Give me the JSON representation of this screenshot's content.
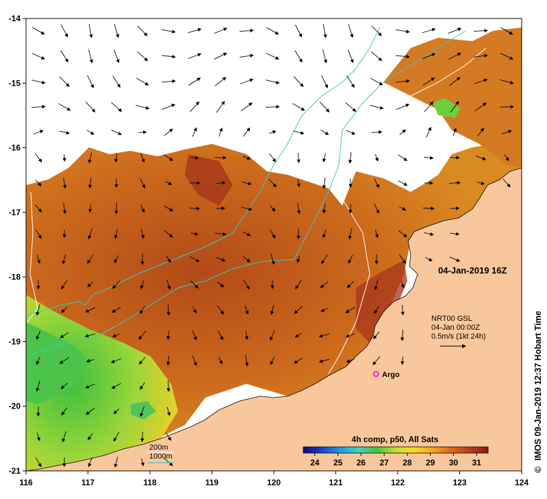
{
  "map": {
    "x_axis": {
      "ticks": [
        "116",
        "117",
        "118",
        "119",
        "120",
        "121",
        "122",
        "123",
        "124"
      ],
      "min": 116,
      "max": 124
    },
    "y_axis": {
      "ticks": [
        "-14",
        "-15",
        "-16",
        "-17",
        "-18",
        "-19",
        "-20",
        "-21"
      ],
      "min": -21,
      "max": -14
    },
    "timestamp": "04-Jan-2019 16Z",
    "currents": {
      "line1": "NRT00 GSL",
      "line2": "04-Jan 00:00Z",
      "line3": "0.5m/s (1kt 24h)"
    },
    "argo": {
      "label": "Argo",
      "lon": 121.65,
      "lat": -19.5,
      "color": "#ff00ff"
    },
    "isobaths": {
      "label_200": "200m",
      "label_1000": "1000m",
      "color_200": "#ffffff",
      "color_1000": "#33cccc"
    },
    "colorbar": {
      "title": "4h comp, p50, All Sats",
      "ticks": [
        "24",
        "25",
        "26",
        "27",
        "28",
        "29",
        "30",
        "31"
      ],
      "min": 23.5,
      "max": 31.5,
      "stops": [
        "#0a0a7a",
        "#1f3fd1",
        "#1c9be8",
        "#3fd4c4",
        "#3fc53f",
        "#c4e03a",
        "#f5e028",
        "#f5a623",
        "#d9681e",
        "#b8401a",
        "#8b1a1a"
      ]
    },
    "credit": "IMOS 09-Jan-2019 12:37 Hobart Time",
    "copyright": "©"
  }
}
